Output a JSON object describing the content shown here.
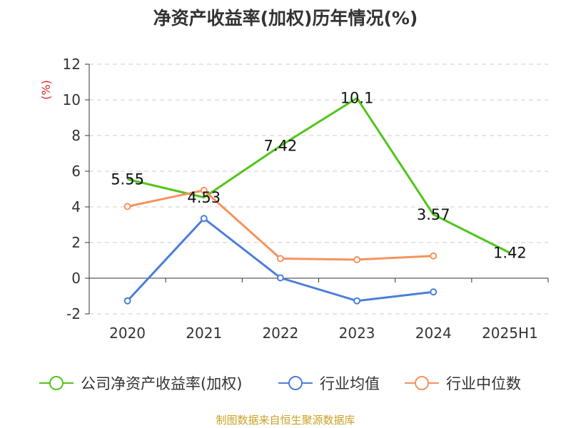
{
  "chart_data": {
    "type": "line",
    "title": "净资产收益率(加权)历年情况(%)",
    "ylabel": "(%)",
    "categories": [
      "2020",
      "2021",
      "2022",
      "2023",
      "2024",
      "2025H1"
    ],
    "yticks": [
      "12",
      "10",
      "8",
      "6",
      "4",
      "2",
      "0",
      "-2"
    ],
    "ylim": [
      -2,
      12
    ],
    "grid": true,
    "legend_position": "bottom",
    "series": [
      {
        "name": "公司净资产收益率(加权)",
        "color": "#52c41a",
        "values": [
          5.55,
          4.53,
          7.42,
          10.1,
          3.57,
          1.42
        ],
        "labels": [
          "5.55",
          "4.53",
          "7.42",
          "10.1",
          "3.57",
          "1.42"
        ]
      },
      {
        "name": "行业均值",
        "color": "#4a7ed9",
        "values": [
          -1.27,
          3.35,
          0.02,
          -1.27,
          -0.77,
          null
        ]
      },
      {
        "name": "行业中位数",
        "color": "#f5925f",
        "values": [
          4.02,
          4.93,
          1.1,
          1.04,
          1.25,
          null
        ]
      }
    ]
  },
  "source_note": "制图数据来自恒生聚源数据库"
}
